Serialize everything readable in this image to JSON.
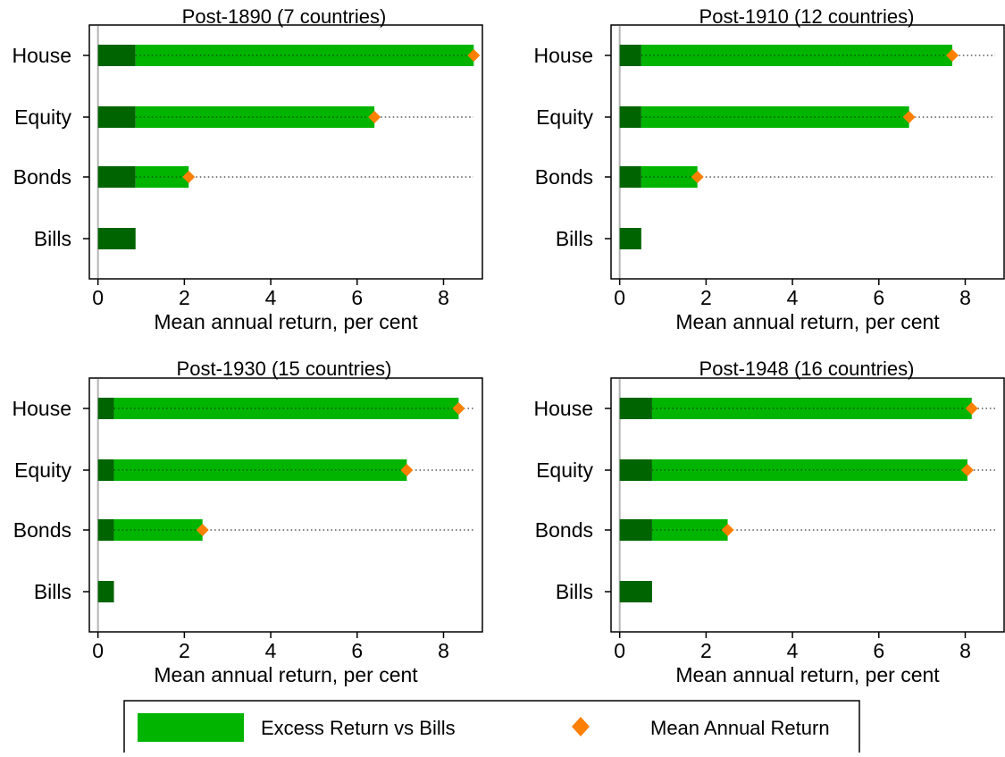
{
  "colors": {
    "bills": "#006400",
    "excess": "#00b400",
    "mean": "#ff8000",
    "zero_line": "#b4b4b4",
    "frame": "#000000"
  },
  "chart_data": [
    {
      "type": "bar",
      "title": "Post-1890 (7 countries)",
      "xlabel": "Mean annual return, per cent",
      "categories": [
        "House",
        "Equity",
        "Bonds",
        "Bills"
      ],
      "bills": 0.87,
      "mean_returns": [
        8.7,
        6.4,
        2.1,
        0.87
      ],
      "xlim": [
        -0.2,
        8.9
      ],
      "xticks": [
        0,
        2,
        4,
        6,
        8
      ],
      "xtick_labels": [
        "0",
        "2",
        "4",
        "6",
        "8"
      ]
    },
    {
      "type": "bar",
      "title": "Post-1910 (12 countries)",
      "xlabel": "Mean annual return, per cent",
      "categories": [
        "House",
        "Equity",
        "Bonds",
        "Bills"
      ],
      "bills": 0.5,
      "mean_returns": [
        7.7,
        6.7,
        1.8,
        0.5
      ],
      "xlim": [
        -0.2,
        8.9
      ],
      "xticks": [
        0,
        2,
        4,
        6,
        8
      ],
      "xtick_labels": [
        "0",
        "2",
        "4",
        "6",
        "8"
      ]
    },
    {
      "type": "bar",
      "title": "Post-1930 (15 countries)",
      "xlabel": "Mean annual return, per cent",
      "categories": [
        "House",
        "Equity",
        "Bonds",
        "Bills"
      ],
      "bills": 0.37,
      "mean_returns": [
        8.35,
        7.15,
        2.42,
        0.37
      ],
      "xlim": [
        -0.2,
        8.9
      ],
      "xticks": [
        0,
        2,
        4,
        6,
        8
      ],
      "xtick_labels": [
        "0",
        "2",
        "4",
        "6",
        "8"
      ]
    },
    {
      "type": "bar",
      "title": "Post-1948 (16 countries)",
      "xlabel": "Mean annual return, per cent",
      "categories": [
        "House",
        "Equity",
        "Bonds",
        "Bills"
      ],
      "bills": 0.75,
      "mean_returns": [
        8.15,
        8.05,
        2.5,
        0.75
      ],
      "xlim": [
        -0.2,
        8.9
      ],
      "xticks": [
        0,
        2,
        4,
        6,
        8
      ],
      "xtick_labels": [
        "0",
        "2",
        "4",
        "6",
        "8"
      ]
    }
  ],
  "legend": {
    "excess_label": "Excess Return vs Bills",
    "mean_label": "Mean Annual Return"
  }
}
